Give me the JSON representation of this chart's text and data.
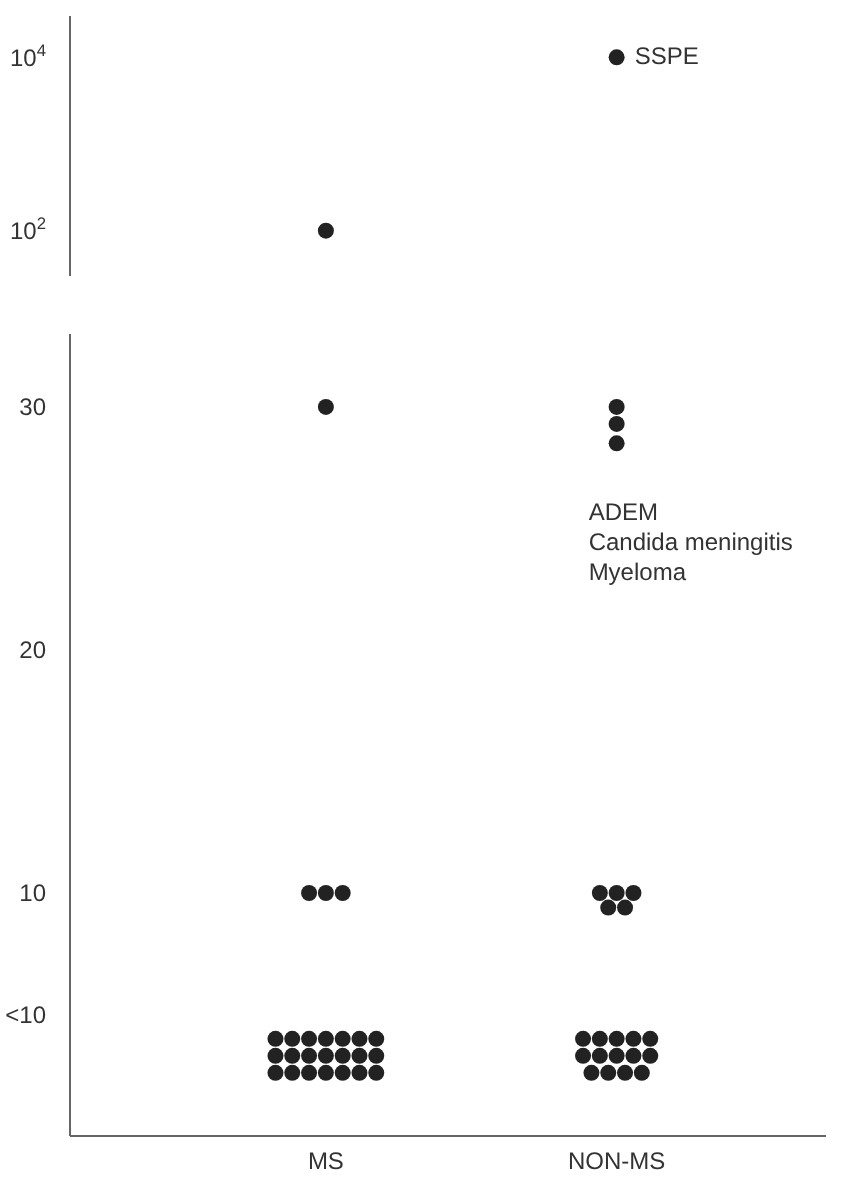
{
  "chart_data": [
    {
      "type": "scatter",
      "categories": [
        "MS",
        "NON-MS"
      ],
      "tick_labels": "y",
      "log": "y",
      "ylim": [
        30,
        30000
      ],
      "yticks": [
        {
          "value": 100,
          "label": "10$^{2}$"
        },
        {
          "value": 10000,
          "label": "10$^{4}$"
        }
      ],
      "annotations": [
        {
          "text": "SSPE",
          "x": "NON-MS",
          "y": 10000
        }
      ],
      "series": [
        {
          "color": "#222222",
          "x": [
            "MS",
            "NON-MS"
          ],
          "values": [
            100,
            10000
          ]
        }
      ]
    },
    {
      "type": "scatter",
      "categories": [
        "MS",
        "NON-MS"
      ],
      "ylim": [
        0,
        33
      ],
      "yticks": [
        {
          "value": 5,
          "label": "<10"
        },
        10,
        20,
        30
      ],
      "annotations": [
        "ADEM",
        "Candida meningitis",
        "Myeloma"
      ],
      "series": [
        {
          "color": "#222222",
          "x": [
            "MS",
            "MS",
            "MS",
            "MS",
            "MS",
            "MS",
            "MS",
            "MS",
            "MS",
            "MS",
            "MS",
            "MS",
            "MS",
            "MS",
            "MS",
            "MS",
            "MS",
            "MS",
            "MS",
            "MS",
            "MS",
            "MS",
            "MS",
            "MS",
            "MS",
            "NON-MS",
            "NON-MS",
            "NON-MS",
            "NON-MS",
            "NON-MS",
            "NON-MS",
            "NON-MS",
            "NON-MS",
            "NON-MS",
            "NON-MS",
            "NON-MS",
            "NON-MS",
            "NON-MS",
            "NON-MS",
            "NON-MS",
            "NON-MS",
            "NON-MS",
            "NON-MS",
            "NON-MS",
            "NON-MS",
            "NON-MS",
            "NON-MS"
          ],
          "values": [
            4,
            4,
            4,
            4,
            4,
            4,
            4,
            3.3,
            3.3,
            3.3,
            3.3,
            3.3,
            3.3,
            3.3,
            2.6,
            2.6,
            2.6,
            2.6,
            2.6,
            2.6,
            2.6,
            10,
            10,
            10,
            30,
            4,
            4,
            4,
            4,
            4,
            3.3,
            3.3,
            3.3,
            3.3,
            3.3,
            2.6,
            2.6,
            2.6,
            2.6,
            10,
            10,
            10,
            9.4,
            9.4,
            30,
            29.3,
            28.5
          ]
        }
      ]
    }
  ]
}
